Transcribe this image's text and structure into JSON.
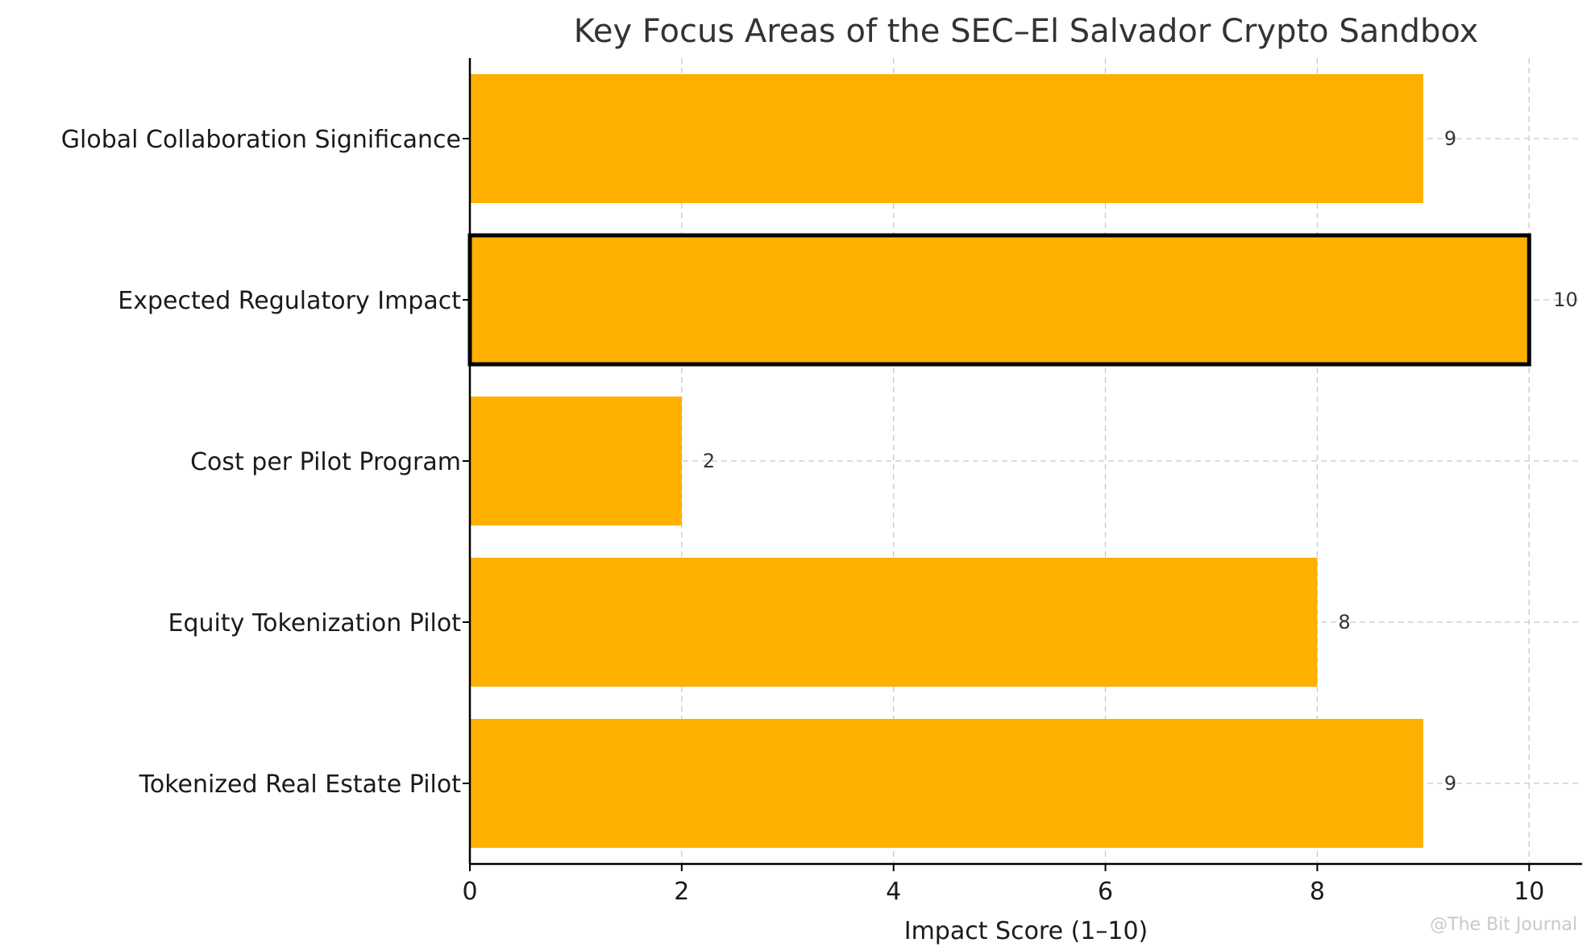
{
  "watermark": "@The Bit Journal",
  "chart_data": {
    "type": "bar",
    "orientation": "horizontal",
    "title": "Key Focus Areas of the SEC–El Salvador Crypto Sandbox",
    "xlabel": "Impact Score (1–10)",
    "ylabel": "",
    "xlim": [
      0,
      10.5
    ],
    "xticks": [
      0,
      2,
      4,
      6,
      8,
      10
    ],
    "grid": true,
    "bar_color": "#FFB000",
    "highlight_color": "#000000",
    "categories": [
      "Global Collaboration Significance",
      "Expected Regulatory Impact",
      "Cost per Pilot Program",
      "Equity Tokenization Pilot",
      "Tokenized Real Estate Pilot"
    ],
    "values": [
      9,
      10,
      2,
      8,
      9
    ],
    "value_labels": [
      "9",
      "10",
      "2",
      "8",
      "9"
    ],
    "highlighted": [
      false,
      true,
      false,
      false,
      false
    ]
  }
}
